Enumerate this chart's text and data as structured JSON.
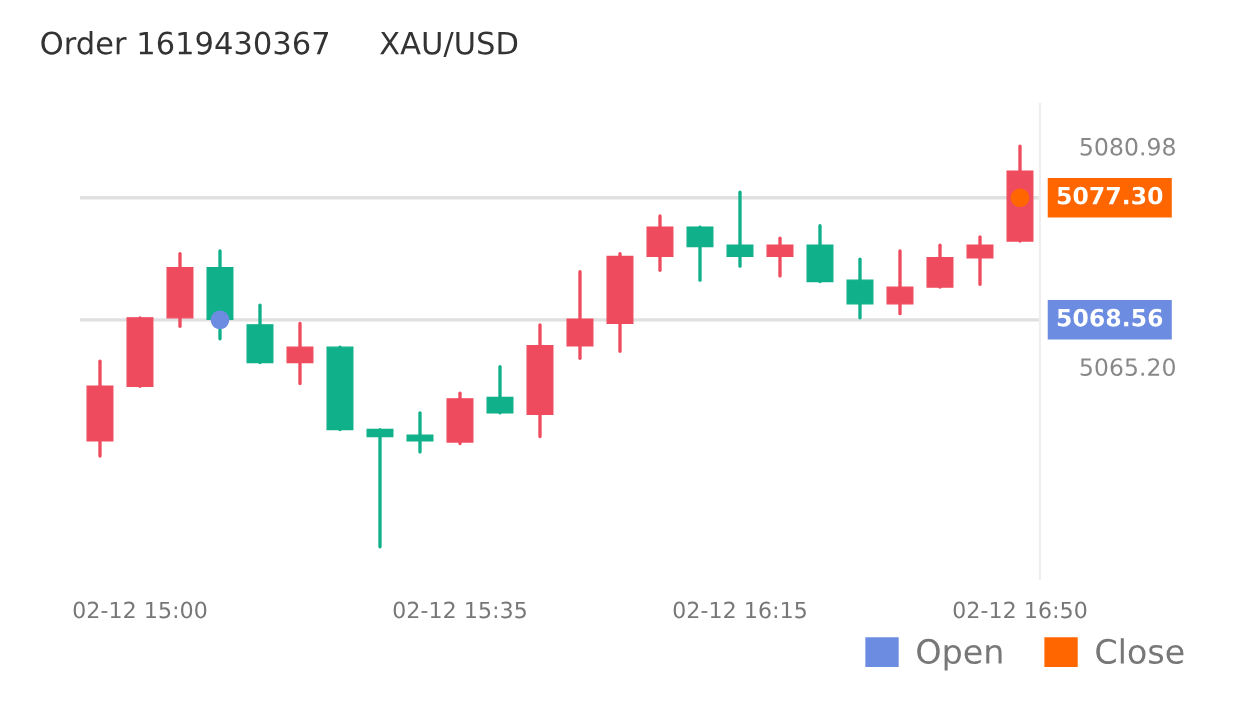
{
  "chart_data": {
    "type": "candlestick",
    "title": "Order 1619430367     XAU/USD",
    "categories": [
      null,
      "02-12 15:00",
      null,
      null,
      null,
      null,
      null,
      null,
      null,
      "02-12 15:35",
      null,
      null,
      null,
      null,
      null,
      null,
      "02-12 16:15",
      null,
      null,
      null,
      null,
      null,
      null,
      "02-12 16:50"
    ],
    "ohlc": [
      [
        5059.9,
        5065.6,
        5058.8,
        5063.8
      ],
      [
        5063.8,
        5068.7,
        5063.8,
        5068.7
      ],
      [
        5068.7,
        5073.3,
        5068.1,
        5072.3
      ],
      [
        5072.3,
        5073.5,
        5067.2,
        5068.6
      ],
      [
        5068.2,
        5069.6,
        5065.5,
        5065.5
      ],
      [
        5065.5,
        5068.3,
        5064.0,
        5066.6
      ],
      [
        5066.6,
        5066.6,
        5060.7,
        5060.7
      ],
      [
        5060.7,
        5060.7,
        5052.3,
        5060.2
      ],
      [
        5060.3,
        5061.9,
        5059.1,
        5059.9
      ],
      [
        5059.8,
        5063.3,
        5059.7,
        5062.9
      ],
      [
        5063.0,
        5065.2,
        5061.9,
        5061.9
      ],
      [
        5061.8,
        5068.2,
        5060.2,
        5066.7
      ],
      [
        5066.7,
        5072.0,
        5065.8,
        5068.6
      ],
      [
        5068.3,
        5073.3,
        5066.3,
        5073.1
      ],
      [
        5073.1,
        5076.0,
        5072.1,
        5075.2
      ],
      [
        5075.2,
        5075.2,
        5071.4,
        5073.8
      ],
      [
        5073.9,
        5077.7,
        5072.4,
        5073.1
      ],
      [
        5073.1,
        5074.4,
        5071.7,
        5073.9
      ],
      [
        5073.9,
        5075.3,
        5071.3,
        5071.3
      ],
      [
        5071.4,
        5072.9,
        5068.7,
        5069.7
      ],
      [
        5069.7,
        5073.5,
        5069.0,
        5070.9
      ],
      [
        5070.9,
        5073.9,
        5070.9,
        5073.0
      ],
      [
        5073.0,
        5074.5,
        5071.1,
        5073.9
      ],
      [
        5074.2,
        5081.0,
        5074.2,
        5079.2
      ]
    ],
    "colors": [
      "#ef4b5e",
      "#ef4b5e",
      "#ef4b5e",
      "#0fb08a",
      "#0fb08a",
      "#ef4b5e",
      "#0fb08a",
      "#0fb08a",
      "#0fb08a",
      "#ef4b5e",
      "#0fb08a",
      "#ef4b5e",
      "#ef4b5e",
      "#ef4b5e",
      "#ef4b5e",
      "#0fb08a",
      "#0fb08a",
      "#ef4b5e",
      "#0fb08a",
      "#0fb08a",
      "#ef4b5e",
      "#ef4b5e",
      "#ef4b5e",
      "#ef4b5e"
    ],
    "series": [
      {
        "name": "Open",
        "type": "scatter",
        "color": "#6b8ce0",
        "values": [
          null,
          null,
          null,
          5068.56,
          null,
          null,
          null,
          null,
          null,
          null,
          null,
          null,
          null,
          null,
          null,
          null,
          null,
          null,
          null,
          null,
          null,
          null,
          null,
          null
        ]
      },
      {
        "name": "Close",
        "type": "scatter",
        "color": "#ff6600",
        "values": [
          null,
          null,
          null,
          null,
          null,
          null,
          null,
          null,
          null,
          null,
          null,
          null,
          null,
          null,
          null,
          null,
          null,
          null,
          null,
          null,
          null,
          null,
          null,
          5077.3
        ]
      }
    ],
    "marker": "circle",
    "ylim": [
      5050,
      5084
    ],
    "yticks": [
      5080.98,
      {
        "value": 5065.2,
        "label": "5065.20"
      }
    ],
    "ref_lines": [
      {
        "axis": "y",
        "value": 5068.56,
        "label": "5068.56",
        "color": "#e0e0e0"
      },
      {
        "axis": "y",
        "value": 5077.3,
        "label": "5077.30",
        "color": "#e0e0e0"
      }
    ],
    "legend": "bottom right"
  }
}
